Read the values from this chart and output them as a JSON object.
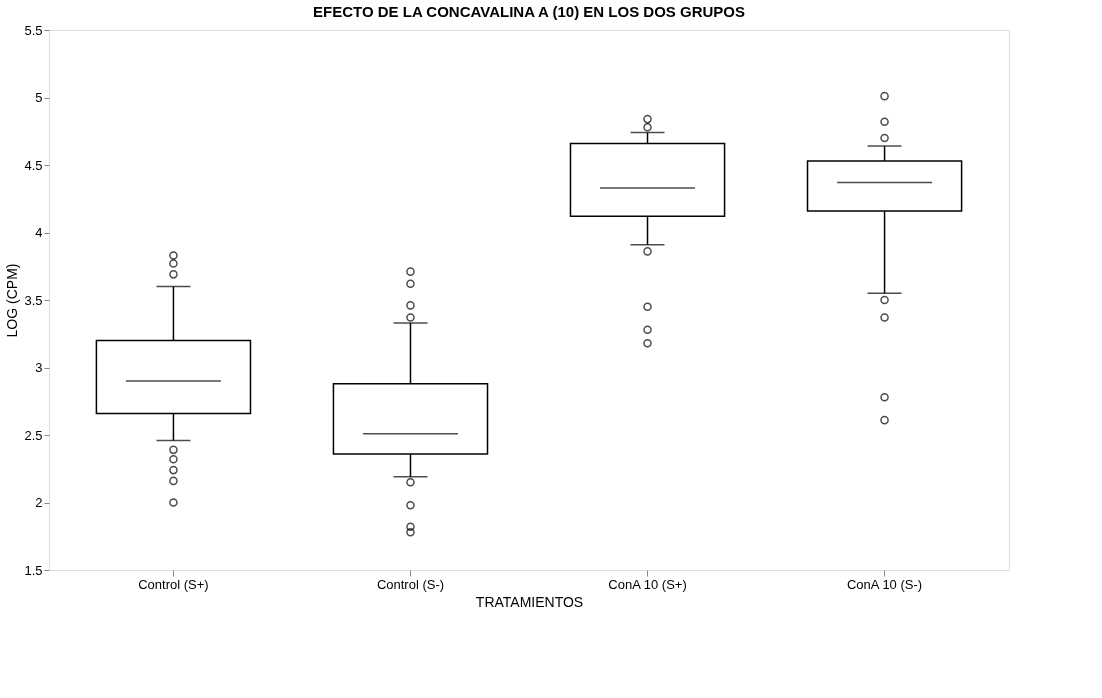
{
  "chart_data": {
    "type": "box",
    "title": "EFECTO DE LA CONCAVALINA A (10) EN LOS DOS GRUPOS",
    "xlabel": "TRATAMIENTOS",
    "ylabel": "LOG (CPM)",
    "categories": [
      "Control (S+)",
      "Control (S-)",
      "ConA 10 (S+)",
      "ConA 10 (S-)"
    ],
    "boxes": [
      {
        "low": 2.46,
        "q1": 2.66,
        "median": 2.9,
        "q3": 3.2,
        "high": 3.6,
        "outliers": [
          2.0,
          2.16,
          2.24,
          2.32,
          2.39,
          3.69,
          3.77,
          3.83
        ]
      },
      {
        "low": 2.19,
        "q1": 2.36,
        "median": 2.51,
        "q3": 2.88,
        "high": 3.33,
        "outliers": [
          1.78,
          1.82,
          1.98,
          2.15,
          3.37,
          3.46,
          3.62,
          3.71
        ]
      },
      {
        "low": 3.91,
        "q1": 4.12,
        "median": 4.33,
        "q3": 4.66,
        "high": 4.74,
        "outliers": [
          3.18,
          3.28,
          3.45,
          3.86,
          4.78,
          4.84
        ]
      },
      {
        "low": 3.55,
        "q1": 4.16,
        "median": 4.37,
        "q3": 4.53,
        "high": 4.64,
        "outliers": [
          2.61,
          2.78,
          3.37,
          3.5,
          4.7,
          4.82,
          5.01
        ]
      }
    ],
    "ylim": [
      1.5,
      5.5
    ],
    "yticks": [
      1.5,
      2,
      2.5,
      3,
      3.5,
      4,
      4.5,
      5,
      5.5
    ],
    "grid": false,
    "marker": "circle"
  }
}
